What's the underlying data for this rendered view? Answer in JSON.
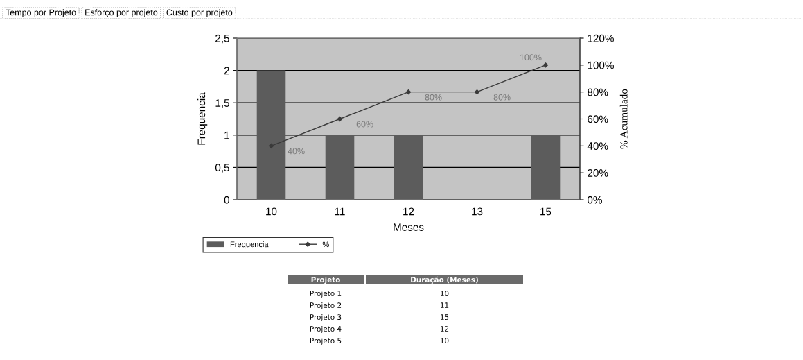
{
  "chart_data": {
    "type": "bar",
    "categories": [
      "10",
      "11",
      "12",
      "13",
      "15"
    ],
    "xlabel": "Meses",
    "ylabel": "Frequencia",
    "y2label": "% Acumulado",
    "series": [
      {
        "name": "Frequencia",
        "color": "#5c5c5c",
        "values": [
          2,
          1,
          1,
          0,
          1
        ]
      },
      {
        "name": "%",
        "type": "line",
        "axis": "y2",
        "color": "#3a3a3a",
        "values": [
          40,
          60,
          80,
          80,
          100
        ],
        "value_labels": [
          "40%",
          "60%",
          "80%",
          "80%",
          "100%"
        ]
      }
    ],
    "ylim": [
      0,
      2.5
    ],
    "yticks": [
      0,
      {
        "value": 0.5,
        "label": "0,5"
      },
      1,
      {
        "value": 1.5,
        "label": "1,5"
      },
      2,
      {
        "value": 2.5,
        "label": "2,5"
      }
    ],
    "y2lim": [
      0,
      120
    ],
    "y2ticks": [
      {
        "value": 0,
        "label": "0%"
      },
      {
        "value": 20,
        "label": "20%"
      },
      {
        "value": 40,
        "label": "40%"
      },
      {
        "value": 60,
        "label": "60%"
      },
      {
        "value": 80,
        "label": "80%"
      },
      {
        "value": 100,
        "label": "100%"
      },
      {
        "value": 120,
        "label": "120%"
      }
    ],
    "grid": "y",
    "legend": "bottom left",
    "marker": "diamond",
    "line_style": "solid",
    "annotations": [
      "Tempo por Projeto",
      "Esforço por projeto",
      "Custo por projeto",
      "Projeto",
      "Duração (Meses)",
      "Projeto 1",
      "10",
      "Projeto 2",
      "11",
      "Projeto 3",
      "15",
      "Projeto 4",
      "12",
      "Projeto 5",
      "10"
    ]
  }
}
